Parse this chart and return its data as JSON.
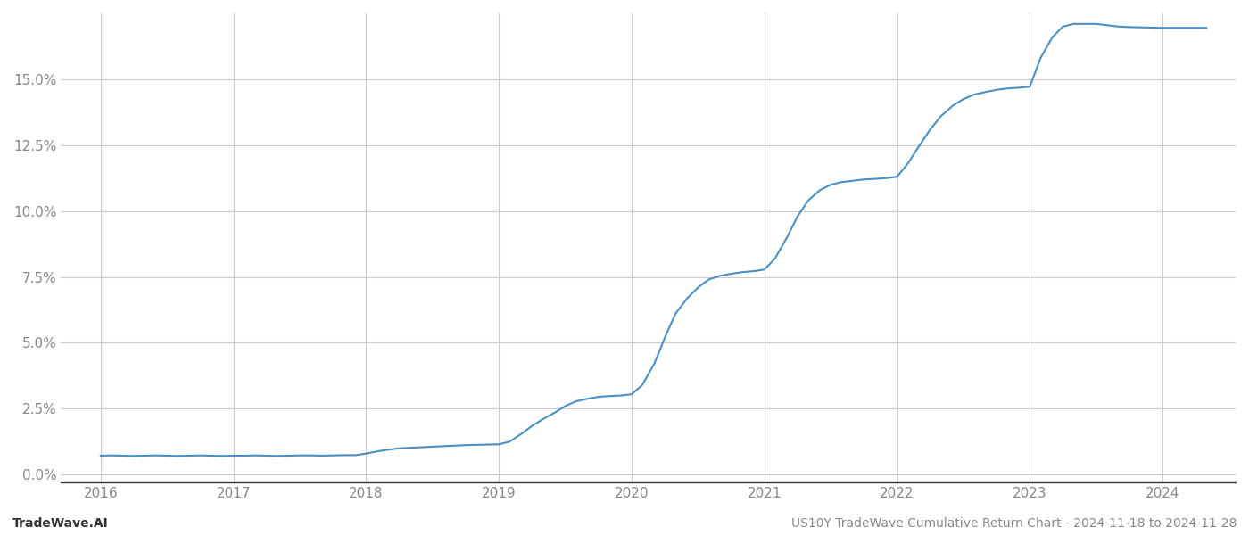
{
  "title": "",
  "footer_left": "TradeWave.AI",
  "footer_right": "US10Y TradeWave Cumulative Return Chart - 2024-11-18 to 2024-11-28",
  "line_color": "#4a90c4",
  "line_width": 1.5,
  "background_color": "#ffffff",
  "grid_color": "#cccccc",
  "ytick_labels": [
    "0.0%",
    "2.5%",
    "5.0%",
    "7.5%",
    "10.0%",
    "12.5%",
    "15.0%"
  ],
  "ytick_values": [
    0.0,
    2.5,
    5.0,
    7.5,
    10.0,
    12.5,
    15.0
  ],
  "ylim": [
    -0.3,
    17.5
  ],
  "xlim_start": 2015.7,
  "xlim_end": 2024.55,
  "xtick_labels": [
    "2016",
    "2017",
    "2018",
    "2019",
    "2020",
    "2021",
    "2022",
    "2023",
    "2024"
  ],
  "xtick_values": [
    2016,
    2017,
    2018,
    2019,
    2020,
    2021,
    2022,
    2023,
    2024
  ],
  "x": [
    2016.0,
    2016.08,
    2016.17,
    2016.25,
    2016.33,
    2016.42,
    2016.5,
    2016.58,
    2016.67,
    2016.75,
    2016.83,
    2016.92,
    2017.0,
    2017.08,
    2017.17,
    2017.25,
    2017.33,
    2017.42,
    2017.5,
    2017.58,
    2017.67,
    2017.75,
    2017.83,
    2017.92,
    2018.0,
    2018.08,
    2018.17,
    2018.25,
    2018.33,
    2018.42,
    2018.5,
    2018.58,
    2018.67,
    2018.75,
    2018.83,
    2018.92,
    2019.0,
    2019.08,
    2019.17,
    2019.25,
    2019.33,
    2019.42,
    2019.5,
    2019.58,
    2019.67,
    2019.75,
    2019.83,
    2019.92,
    2020.0,
    2020.08,
    2020.17,
    2020.25,
    2020.33,
    2020.42,
    2020.5,
    2020.58,
    2020.67,
    2020.75,
    2020.83,
    2020.92,
    2021.0,
    2021.08,
    2021.17,
    2021.25,
    2021.33,
    2021.42,
    2021.5,
    2021.58,
    2021.67,
    2021.75,
    2021.83,
    2021.92,
    2022.0,
    2022.08,
    2022.17,
    2022.25,
    2022.33,
    2022.42,
    2022.5,
    2022.58,
    2022.67,
    2022.75,
    2022.83,
    2022.92,
    2023.0,
    2023.08,
    2023.17,
    2023.25,
    2023.33,
    2023.42,
    2023.5,
    2023.58,
    2023.67,
    2023.75,
    2023.83,
    2023.92,
    2024.0,
    2024.08,
    2024.17,
    2024.25,
    2024.33
  ],
  "y": [
    0.72,
    0.73,
    0.72,
    0.71,
    0.72,
    0.73,
    0.72,
    0.71,
    0.72,
    0.73,
    0.72,
    0.71,
    0.72,
    0.72,
    0.73,
    0.72,
    0.71,
    0.72,
    0.73,
    0.73,
    0.72,
    0.73,
    0.74,
    0.74,
    0.8,
    0.88,
    0.95,
    1.0,
    1.02,
    1.04,
    1.06,
    1.08,
    1.1,
    1.12,
    1.13,
    1.14,
    1.15,
    1.25,
    1.55,
    1.85,
    2.1,
    2.35,
    2.6,
    2.78,
    2.88,
    2.95,
    2.98,
    3.0,
    3.05,
    3.4,
    4.2,
    5.2,
    6.1,
    6.7,
    7.1,
    7.4,
    7.55,
    7.62,
    7.68,
    7.72,
    7.78,
    8.2,
    9.0,
    9.8,
    10.4,
    10.8,
    11.0,
    11.1,
    11.15,
    11.2,
    11.22,
    11.25,
    11.3,
    11.8,
    12.5,
    13.1,
    13.6,
    14.0,
    14.25,
    14.42,
    14.52,
    14.6,
    14.65,
    14.68,
    14.72,
    15.8,
    16.6,
    17.0,
    17.1,
    17.1,
    17.1,
    17.05,
    17.0,
    16.98,
    16.97,
    16.96,
    16.95,
    16.95,
    16.95,
    16.95,
    16.95
  ]
}
